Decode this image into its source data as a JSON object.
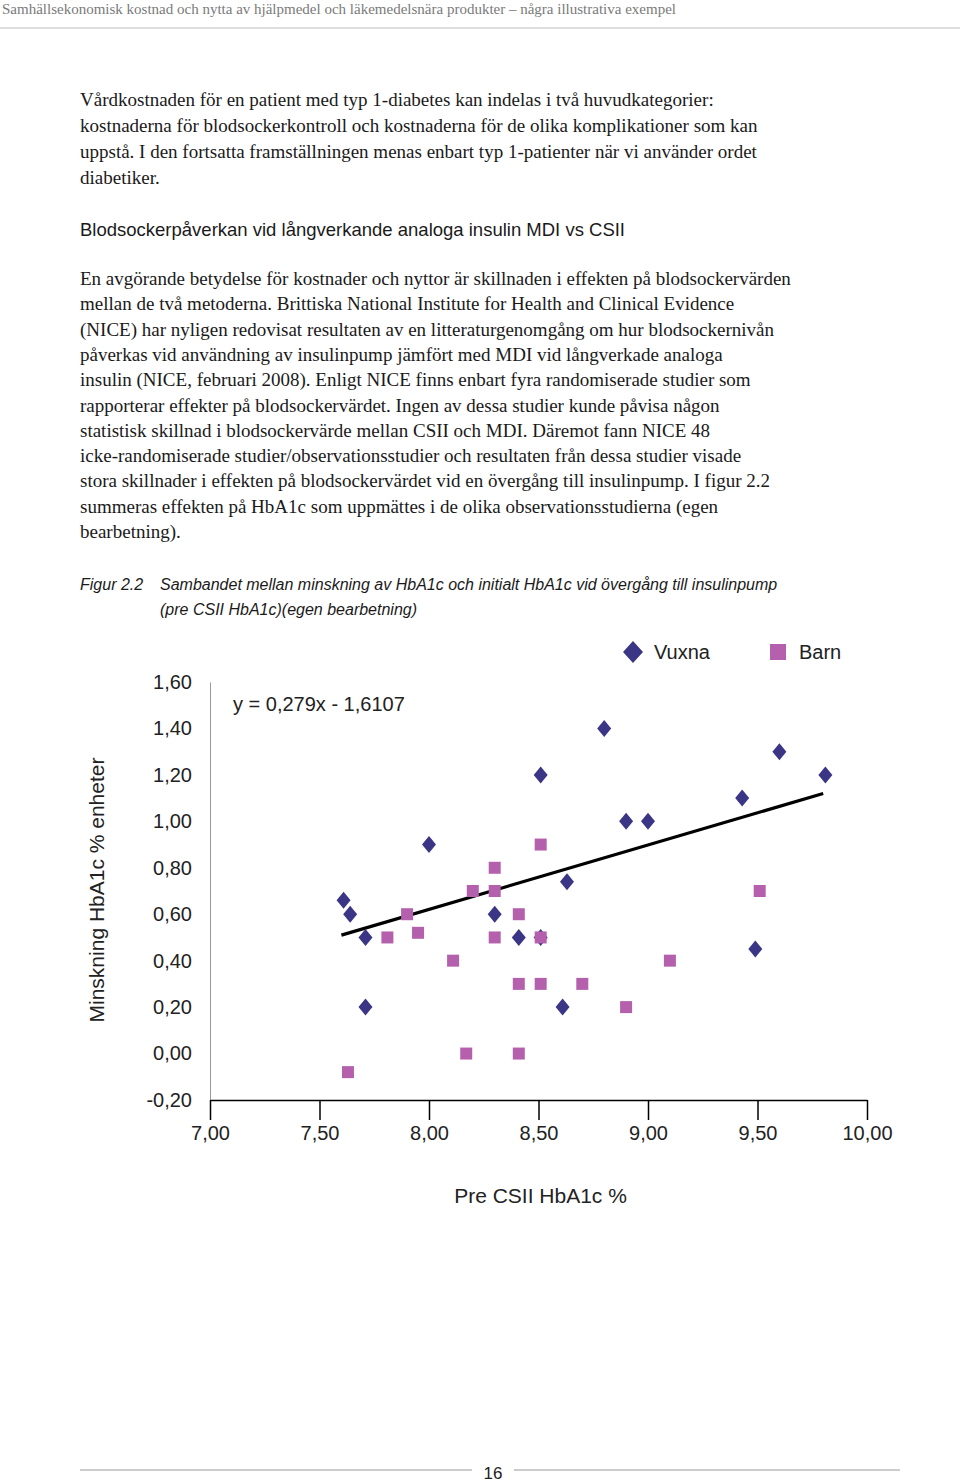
{
  "header": {
    "running_title": "Samhällsekonomisk kostnad och nytta av hjälpmedel och läkemedelsnära produkter – några illustrativa exempel",
    "page_number": "16"
  },
  "intro": {
    "lines": [
      "Vårdkostnaden för en patient med typ 1-diabetes kan indelas i två huvudkategorier:",
      "kostnaderna för blodsockerkontroll och kostnaderna för de olika komplikationer som kan",
      "uppstå. I den fortsatta framställningen menas enbart typ 1-patienter när vi använder ordet",
      "diabetiker."
    ]
  },
  "section_heading": "Blodsockerpåverkan vid långverkande analoga insulin MDI vs CSII",
  "body": {
    "lines": [
      "En avgörande betydelse för kostnader och nyttor är skillnaden i effekten på blodsockervärden",
      "mellan de två metoderna. Brittiska National Institute for Health and Clinical Evidence",
      "(NICE) har nyligen redovisat resultaten av en litteraturgenomgång om hur blodsockernivån",
      "påverkas vid användning av insulinpump jämfört med MDI vid långverkade analoga",
      "insulin (NICE, februari 2008). Enligt NICE finns enbart fyra randomiserade studier som",
      "rapporterar effekter på blodsockervärdet. Ingen av dessa studier kunde påvisa någon",
      "statistisk skillnad i blodsockervärde mellan CSII och MDI. Däremot fann NICE 48",
      "icke-randomiserade studier/observationsstudier och resultaten från dessa studier visade",
      "stora skillnader i effekten på blodsockervärdet vid en övergång till insulinpump. I figur 2.2",
      "summeras effekten på HbA1c som uppmättes i de olika observationsstudierna (egen",
      "bearbetning)."
    ]
  },
  "figure": {
    "label": "Figur 2.2",
    "caption_lines": [
      "Sambandet mellan minskning av HbA1c och initialt HbA1c vid övergång till insulinpump",
      "(pre CSII HbA1c)(egen bearbetning)"
    ]
  },
  "chart_data": {
    "type": "scatter",
    "x_label": "Pre CSII HbA1c %",
    "y_label": "Minskning HbA1c % enheter",
    "xlim": [
      7,
      10
    ],
    "ylim": [
      -0.2,
      1.6
    ],
    "xticks": [
      {
        "value": 7,
        "label": "7,00"
      },
      {
        "value": 7.5,
        "label": "7,50"
      },
      {
        "value": 8,
        "label": "8,00"
      },
      {
        "value": 8.5,
        "label": "8,50"
      },
      {
        "value": 9,
        "label": "9,00"
      },
      {
        "value": 9.5,
        "label": "9,50"
      },
      {
        "value": 10,
        "label": "10,00"
      }
    ],
    "yticks": [
      {
        "value": -0.2,
        "label": "-0,20"
      },
      {
        "value": 0,
        "label": "0,00"
      },
      {
        "value": 0.2,
        "label": "0,20"
      },
      {
        "value": 0.4,
        "label": "0,40"
      },
      {
        "value": 0.6,
        "label": "0,60"
      },
      {
        "value": 0.8,
        "label": "0,80"
      },
      {
        "value": 1,
        "label": "1,00"
      },
      {
        "value": 1.2,
        "label": "1,20"
      },
      {
        "value": 1.4,
        "label": "1,40"
      },
      {
        "value": 1.6,
        "label": "1,60"
      }
    ],
    "grid": false,
    "legend": "top-right",
    "series": [
      {
        "name": "Vuxna",
        "color": "#3b3585",
        "marker": "diamond",
        "x": [
          7.61,
          7.64,
          7.71,
          7.71,
          8.0,
          8.3,
          8.41,
          8.51,
          8.51,
          8.61,
          8.63,
          8.8,
          8.9,
          9.0,
          9.43,
          9.49,
          9.6,
          9.81
        ],
        "values": [
          0.66,
          0.6,
          0.5,
          0.2,
          0.9,
          0.6,
          0.5,
          1.2,
          0.5,
          0.2,
          0.74,
          1.4,
          1.0,
          1.0,
          1.1,
          0.45,
          1.3,
          1.2
        ]
      },
      {
        "name": "Barn",
        "color": "#b460ad",
        "marker": "square",
        "x": [
          7.63,
          7.81,
          7.9,
          7.95,
          8.11,
          8.17,
          8.2,
          8.3,
          8.3,
          8.3,
          8.41,
          8.41,
          8.41,
          8.51,
          8.51,
          8.51,
          8.7,
          8.9,
          9.1,
          9.51
        ],
        "values": [
          -0.08,
          0.5,
          0.6,
          0.52,
          0.4,
          0.0,
          0.7,
          0.8,
          0.7,
          0.5,
          0.6,
          0.3,
          0.0,
          0.9,
          0.5,
          0.3,
          0.3,
          0.2,
          0.4,
          0.7
        ]
      }
    ],
    "trendline": {
      "type": "line",
      "color": "#000000",
      "label": "y = 0,279x - 1,6107",
      "x": [
        7.6,
        9.8
      ],
      "values": [
        0.51,
        1.12
      ]
    }
  }
}
